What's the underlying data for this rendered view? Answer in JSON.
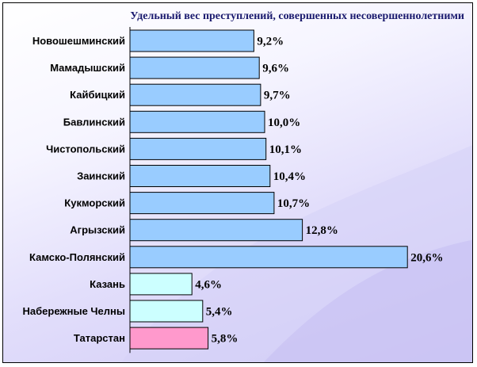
{
  "chart_data": {
    "type": "bar",
    "orientation": "horizontal",
    "title": "Удельный вес преступлений, совершенных несовершеннолетними",
    "categories": [
      "Новошешминский",
      "Мамадышский",
      "Кайбицкий",
      "Бавлинский",
      "Чистопольский",
      "Заинский",
      "Кукморский",
      "Агрызский",
      "Камско-Полянский",
      "Казань",
      "Набережные Челны",
      "Татарстан"
    ],
    "values": [
      9.2,
      9.6,
      9.7,
      10.0,
      10.1,
      10.4,
      10.7,
      12.8,
      20.6,
      4.6,
      5.4,
      5.8
    ],
    "value_labels": [
      "9,2%",
      "9,6%",
      "9,7%",
      "10,0%",
      "10,1%",
      "10,4%",
      "10,7%",
      "12,8%",
      "20,6%",
      "4,6%",
      "5,4%",
      "5,8%"
    ],
    "unit": "%",
    "grid": false,
    "legend": "none",
    "bar_colors": [
      "#99ccff",
      "#99ccff",
      "#99ccff",
      "#99ccff",
      "#99ccff",
      "#99ccff",
      "#99ccff",
      "#99ccff",
      "#99ccff",
      "#ccffff",
      "#ccffff",
      "#ff99cc"
    ]
  }
}
